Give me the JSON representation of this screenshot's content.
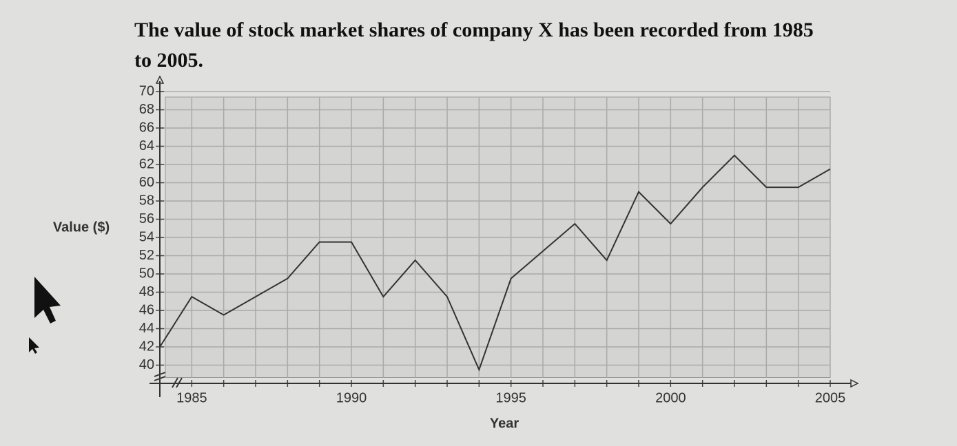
{
  "chart_data": {
    "type": "line",
    "title": "The value of stock market shares of company X has been recorded from 1985 to 2005.",
    "xlabel": "Year",
    "ylabel": "Value ($)",
    "x": [
      1984,
      1985,
      1986,
      1987,
      1988,
      1989,
      1990,
      1991,
      1992,
      1993,
      1994,
      1995,
      1996,
      1997,
      1998,
      1999,
      2000,
      2001,
      2002,
      2003,
      2004,
      2005
    ],
    "series": [
      {
        "name": "Value",
        "color": "#333333",
        "values": [
          42,
          47.5,
          45.5,
          47.5,
          49.5,
          53.5,
          53.5,
          47.5,
          51.5,
          47.5,
          39.5,
          49.5,
          52.5,
          55.5,
          51.5,
          59,
          55.5,
          59.5,
          63,
          59.5,
          59.5,
          61.5
        ]
      }
    ],
    "xlim": [
      1984,
      2005
    ],
    "xticks": [
      1985,
      1990,
      1995,
      2000,
      2005
    ],
    "ylim": [
      38,
      70
    ],
    "yticks": [
      40,
      42,
      44,
      46,
      48,
      50,
      52,
      54,
      56,
      58,
      60,
      62,
      64,
      66,
      68,
      70
    ],
    "grid": true
  }
}
